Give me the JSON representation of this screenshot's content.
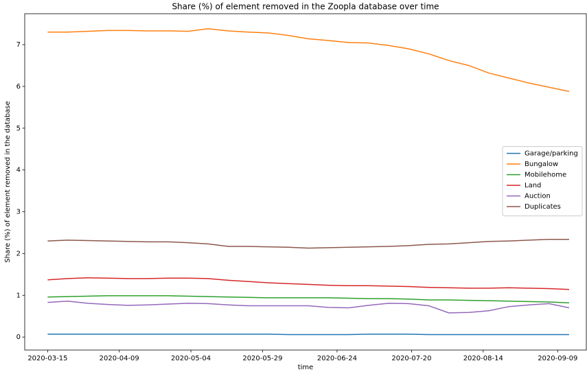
{
  "chart_data": {
    "type": "line",
    "title": "Share (%) of element removed in the Zoopla database over time",
    "x_label": "time",
    "y_label": "Share (%) of element removed in the database",
    "x": [
      "2020-03-15",
      "2020-03-22",
      "2020-03-29",
      "2020-04-05",
      "2020-04-12",
      "2020-04-19",
      "2020-04-26",
      "2020-05-03",
      "2020-05-10",
      "2020-05-17",
      "2020-05-24",
      "2020-05-31",
      "2020-06-07",
      "2020-06-14",
      "2020-06-21",
      "2020-06-28",
      "2020-07-05",
      "2020-07-12",
      "2020-07-19",
      "2020-07-26",
      "2020-08-02",
      "2020-08-09",
      "2020-08-16",
      "2020-08-23",
      "2020-08-30",
      "2020-09-06",
      "2020-09-13"
    ],
    "xlim": [
      "2020-03-07",
      "2020-09-19"
    ],
    "xticks": [
      "2020-03-15",
      "2020-04-09",
      "2020-05-04",
      "2020-05-29",
      "2020-06-24",
      "2020-07-20",
      "2020-08-14",
      "2020-09-09"
    ],
    "ylim": [
      -0.31,
      7.74
    ],
    "yticks": [
      0,
      1,
      2,
      3,
      4,
      5,
      6,
      7
    ],
    "legend": "center right",
    "series": [
      {
        "name": "Garage/parking",
        "color": "#1f77b4",
        "values": [
          0.07,
          0.07,
          0.07,
          0.07,
          0.07,
          0.07,
          0.07,
          0.07,
          0.07,
          0.07,
          0.07,
          0.07,
          0.06,
          0.06,
          0.06,
          0.06,
          0.07,
          0.07,
          0.07,
          0.06,
          0.06,
          0.06,
          0.06,
          0.06,
          0.06,
          0.06,
          0.06
        ]
      },
      {
        "name": "Bungalow",
        "color": "#ff7f0e",
        "values": [
          7.3,
          7.3,
          7.32,
          7.34,
          7.34,
          7.33,
          7.33,
          7.32,
          7.38,
          7.33,
          7.3,
          7.28,
          7.22,
          7.14,
          7.1,
          7.05,
          7.04,
          6.98,
          6.9,
          6.78,
          6.62,
          6.5,
          6.32,
          6.2,
          6.08,
          5.98,
          5.88
        ]
      },
      {
        "name": "Mobilehome",
        "color": "#2ca02c",
        "values": [
          0.96,
          0.97,
          0.98,
          0.99,
          0.99,
          0.99,
          0.99,
          0.98,
          0.97,
          0.96,
          0.95,
          0.94,
          0.94,
          0.94,
          0.94,
          0.93,
          0.92,
          0.92,
          0.91,
          0.89,
          0.89,
          0.88,
          0.87,
          0.86,
          0.85,
          0.84,
          0.82
        ]
      },
      {
        "name": "Land",
        "color": "#d62728",
        "values": [
          1.37,
          1.4,
          1.42,
          1.41,
          1.4,
          1.4,
          1.41,
          1.41,
          1.4,
          1.36,
          1.33,
          1.3,
          1.28,
          1.26,
          1.24,
          1.23,
          1.23,
          1.22,
          1.21,
          1.19,
          1.18,
          1.17,
          1.17,
          1.18,
          1.17,
          1.16,
          1.14
        ]
      },
      {
        "name": "Auction",
        "color": "#9467bd",
        "values": [
          0.83,
          0.86,
          0.81,
          0.78,
          0.76,
          0.77,
          0.79,
          0.81,
          0.8,
          0.77,
          0.75,
          0.75,
          0.75,
          0.75,
          0.71,
          0.7,
          0.76,
          0.81,
          0.8,
          0.75,
          0.58,
          0.59,
          0.63,
          0.73,
          0.77,
          0.8,
          0.7
        ]
      },
      {
        "name": "Duplicates",
        "color": "#8c564b",
        "values": [
          2.3,
          2.32,
          2.31,
          2.3,
          2.29,
          2.28,
          2.28,
          2.26,
          2.23,
          2.17,
          2.17,
          2.16,
          2.15,
          2.13,
          2.14,
          2.15,
          2.16,
          2.17,
          2.19,
          2.22,
          2.23,
          2.26,
          2.29,
          2.3,
          2.32,
          2.34,
          2.34
        ]
      }
    ]
  }
}
